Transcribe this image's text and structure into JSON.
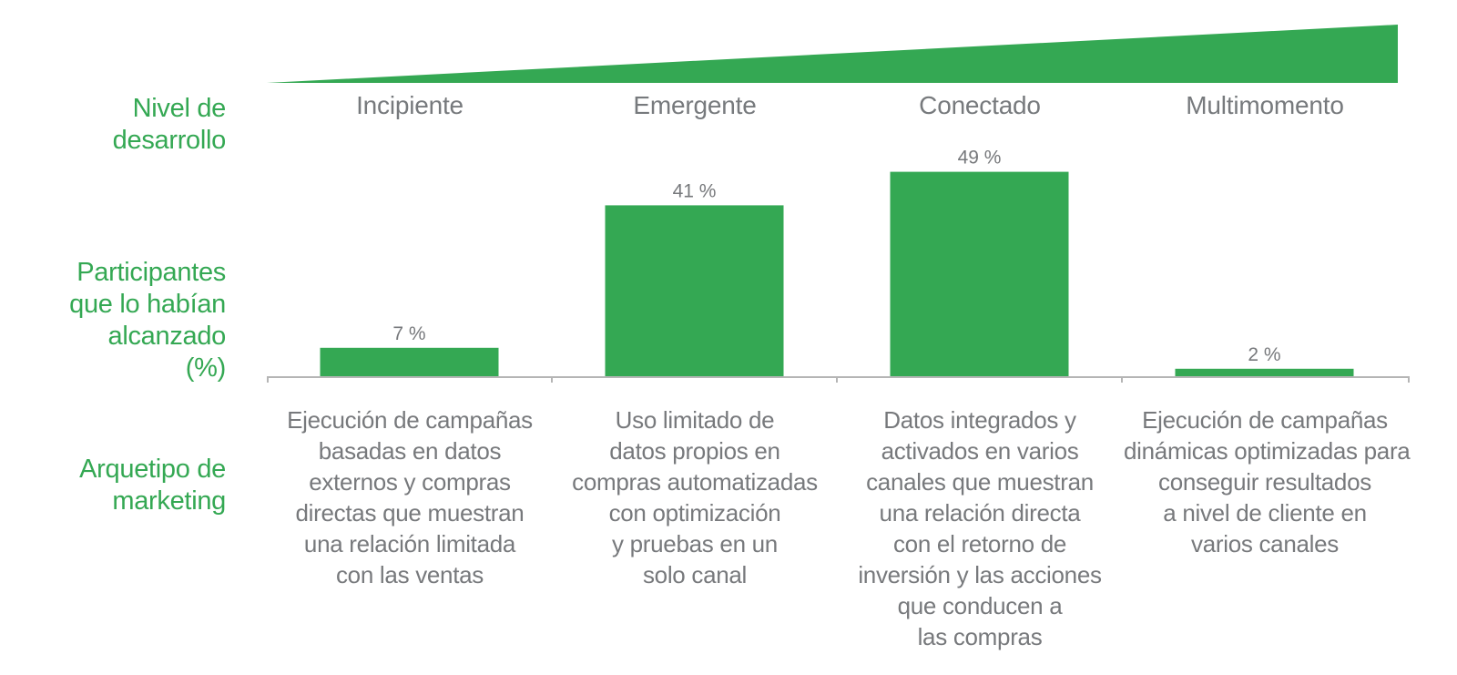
{
  "colors": {
    "accent": "#34a853",
    "text": "#77797c",
    "axis": "#b5b5b5"
  },
  "row_labels": {
    "level": [
      "Nivel de",
      "desarrollo"
    ],
    "participants": [
      "Participantes",
      "que lo habían",
      "alcanzado",
      "(%)"
    ],
    "archetype": [
      "Arquetipo de",
      "marketing"
    ]
  },
  "stages": [
    "Incipiente",
    "Emergente",
    "Conectado",
    "Multimomento"
  ],
  "archetypes": [
    [
      "Ejecución de campañas",
      "basadas en datos",
      "externos y compras",
      "directas que muestran",
      "una relación limitada",
      "con las ventas"
    ],
    [
      "Uso limitado de",
      "datos propios en",
      "compras automatizadas",
      "con optimización",
      "y pruebas en un",
      "solo canal"
    ],
    [
      "Datos integrados y",
      "activados en varios",
      "canales que muestran",
      "una relación directa",
      "con el retorno de",
      "inversión y las acciones",
      "que conducen a",
      "las compras"
    ],
    [
      "Ejecución de campañas",
      "dinámicas optimizadas para",
      "conseguir resultados",
      "a nivel de cliente en",
      "varios canales"
    ]
  ],
  "chart_data": {
    "type": "bar",
    "categories": [
      "Incipiente",
      "Emergente",
      "Conectado",
      "Multimomento"
    ],
    "values": [
      7,
      41,
      49,
      2
    ],
    "data_labels": [
      "7 %",
      "41 %",
      "49 %",
      "2 %"
    ],
    "title": "",
    "xlabel": "",
    "ylabel": "",
    "ylim": [
      0,
      50
    ],
    "grid": false
  }
}
